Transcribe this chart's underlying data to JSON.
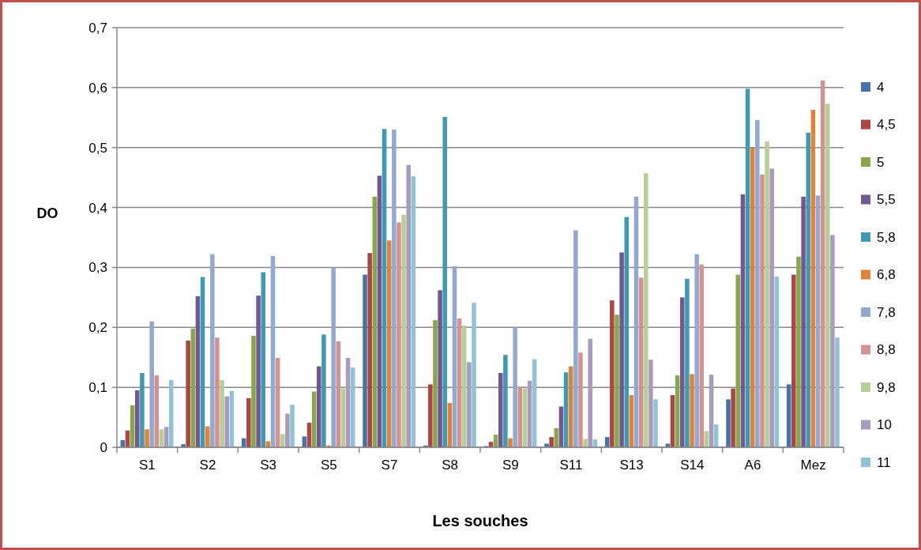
{
  "chart_data": {
    "type": "bar",
    "xlabel": "Les souches",
    "ylabel": "DO",
    "categories": [
      "S1",
      "S2",
      "S3",
      "S5",
      "S7",
      "S8",
      "S9",
      "S11",
      "S13",
      "S14",
      "A6",
      "Mez"
    ],
    "series": [
      {
        "name": "4",
        "color": "#4572a7",
        "values": [
          0.012,
          0.005,
          0.015,
          0.018,
          0.288,
          0.003,
          0.002,
          0.006,
          0.017,
          0.006,
          0.08,
          0.105
        ]
      },
      {
        "name": "4,5",
        "color": "#aa4643",
        "values": [
          0.028,
          0.178,
          0.082,
          0.041,
          0.324,
          0.105,
          0.009,
          0.017,
          0.245,
          0.087,
          0.098,
          0.288
        ]
      },
      {
        "name": "5",
        "color": "#89a54e",
        "values": [
          0.07,
          0.198,
          0.186,
          0.093,
          0.418,
          0.212,
          0.021,
          0.032,
          0.221,
          0.12,
          0.288,
          0.318
        ]
      },
      {
        "name": "5,5",
        "color": "#71588f",
        "values": [
          0.095,
          0.252,
          0.253,
          0.135,
          0.453,
          0.262,
          0.124,
          0.068,
          0.325,
          0.25,
          0.422,
          0.418
        ]
      },
      {
        "name": "5,8",
        "color": "#4198af",
        "values": [
          0.124,
          0.284,
          0.292,
          0.188,
          0.531,
          0.551,
          0.154,
          0.125,
          0.384,
          0.281,
          0.598,
          0.525
        ]
      },
      {
        "name": "6,8",
        "color": "#db843d",
        "values": [
          0.03,
          0.035,
          0.01,
          0.003,
          0.345,
          0.074,
          0.015,
          0.135,
          0.087,
          0.122,
          0.5,
          0.563
        ]
      },
      {
        "name": "7,8",
        "color": "#93a9cf",
        "values": [
          0.21,
          0.322,
          0.319,
          0.3,
          0.53,
          0.302,
          0.2,
          0.362,
          0.418,
          0.322,
          0.546,
          0.42
        ]
      },
      {
        "name": "8,8",
        "color": "#d19392",
        "values": [
          0.12,
          0.183,
          0.149,
          0.177,
          0.375,
          0.215,
          0.101,
          0.158,
          0.283,
          0.305,
          0.455,
          0.612
        ]
      },
      {
        "name": "9,8",
        "color": "#b9cd96",
        "values": [
          0.03,
          0.112,
          0.022,
          0.098,
          0.388,
          0.203,
          0.098,
          0.014,
          0.457,
          0.027,
          0.51,
          0.573
        ]
      },
      {
        "name": "10",
        "color": "#a99bbd",
        "values": [
          0.034,
          0.085,
          0.056,
          0.149,
          0.471,
          0.142,
          0.111,
          0.181,
          0.146,
          0.121,
          0.465,
          0.354
        ]
      },
      {
        "name": "11",
        "color": "#92c3d5",
        "values": [
          0.112,
          0.094,
          0.071,
          0.133,
          0.452,
          0.241,
          0.147,
          0.013,
          0.08,
          0.038,
          0.285,
          0.183
        ]
      }
    ],
    "ylim": [
      0,
      0.7
    ],
    "yticks": [
      {
        "value": 0,
        "label": "0"
      },
      {
        "value": 0.1,
        "label": "0,1"
      },
      {
        "value": 0.2,
        "label": "0,2"
      },
      {
        "value": 0.3,
        "label": "0,3"
      },
      {
        "value": 0.4,
        "label": "0,4"
      },
      {
        "value": 0.5,
        "label": "0,5"
      },
      {
        "value": 0.6,
        "label": "0,6"
      },
      {
        "value": 0.7,
        "label": "0,7"
      }
    ],
    "grid": "y",
    "legend": "right"
  }
}
